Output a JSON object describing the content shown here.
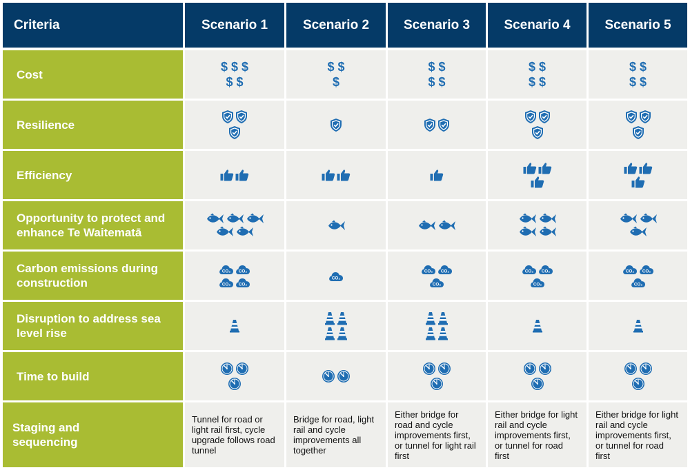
{
  "header": {
    "criteria": "Criteria",
    "scenarios": [
      "Scenario 1",
      "Scenario 2",
      "Scenario 3",
      "Scenario 4",
      "Scenario 5"
    ]
  },
  "colors": {
    "header_bg": "#053a67",
    "criteria_bg": "#a9bc33",
    "cell_bg": "#efefec",
    "icon": "#1f6db2"
  },
  "rows": [
    {
      "label": "Cost",
      "icon": "dollar-icon",
      "glyph": "$",
      "counts": [
        5,
        3,
        4,
        4,
        4
      ]
    },
    {
      "label": "Resilience",
      "icon": "shield-check-icon",
      "counts": [
        3,
        1,
        2,
        3,
        3
      ]
    },
    {
      "label": "Efficiency",
      "icon": "thumbs-up-icon",
      "counts": [
        2,
        2,
        1,
        3,
        3
      ]
    },
    {
      "label": "Opportunity to protect and enhance Te Waitematā",
      "icon": "fish-icon",
      "counts": [
        5,
        1,
        2,
        4,
        3
      ]
    },
    {
      "label": "Carbon emissions during construction",
      "icon": "co2-cloud-icon",
      "glyph": "CO₂",
      "counts": [
        4,
        1,
        3,
        3,
        3
      ]
    },
    {
      "label": "Disruption to address sea level rise",
      "icon": "traffic-cone-icon",
      "counts": [
        1,
        4,
        4,
        1,
        1
      ]
    },
    {
      "label": "Time to build",
      "icon": "clock-icon",
      "counts": [
        3,
        2,
        3,
        3,
        3
      ]
    }
  ],
  "staging": {
    "label": "Staging and sequencing",
    "texts": [
      "Tunnel for road or light rail first, cycle upgrade follows road tunnel",
      "Bridge for road, light rail and cycle improvements all together",
      "Either bridge for road and cycle improvements first, or tunnel for light rail first",
      "Either bridge for light rail and cycle improvements first, or tunnel for road first",
      "Either bridge for light rail and cycle improvements first, or tunnel for road first"
    ]
  }
}
